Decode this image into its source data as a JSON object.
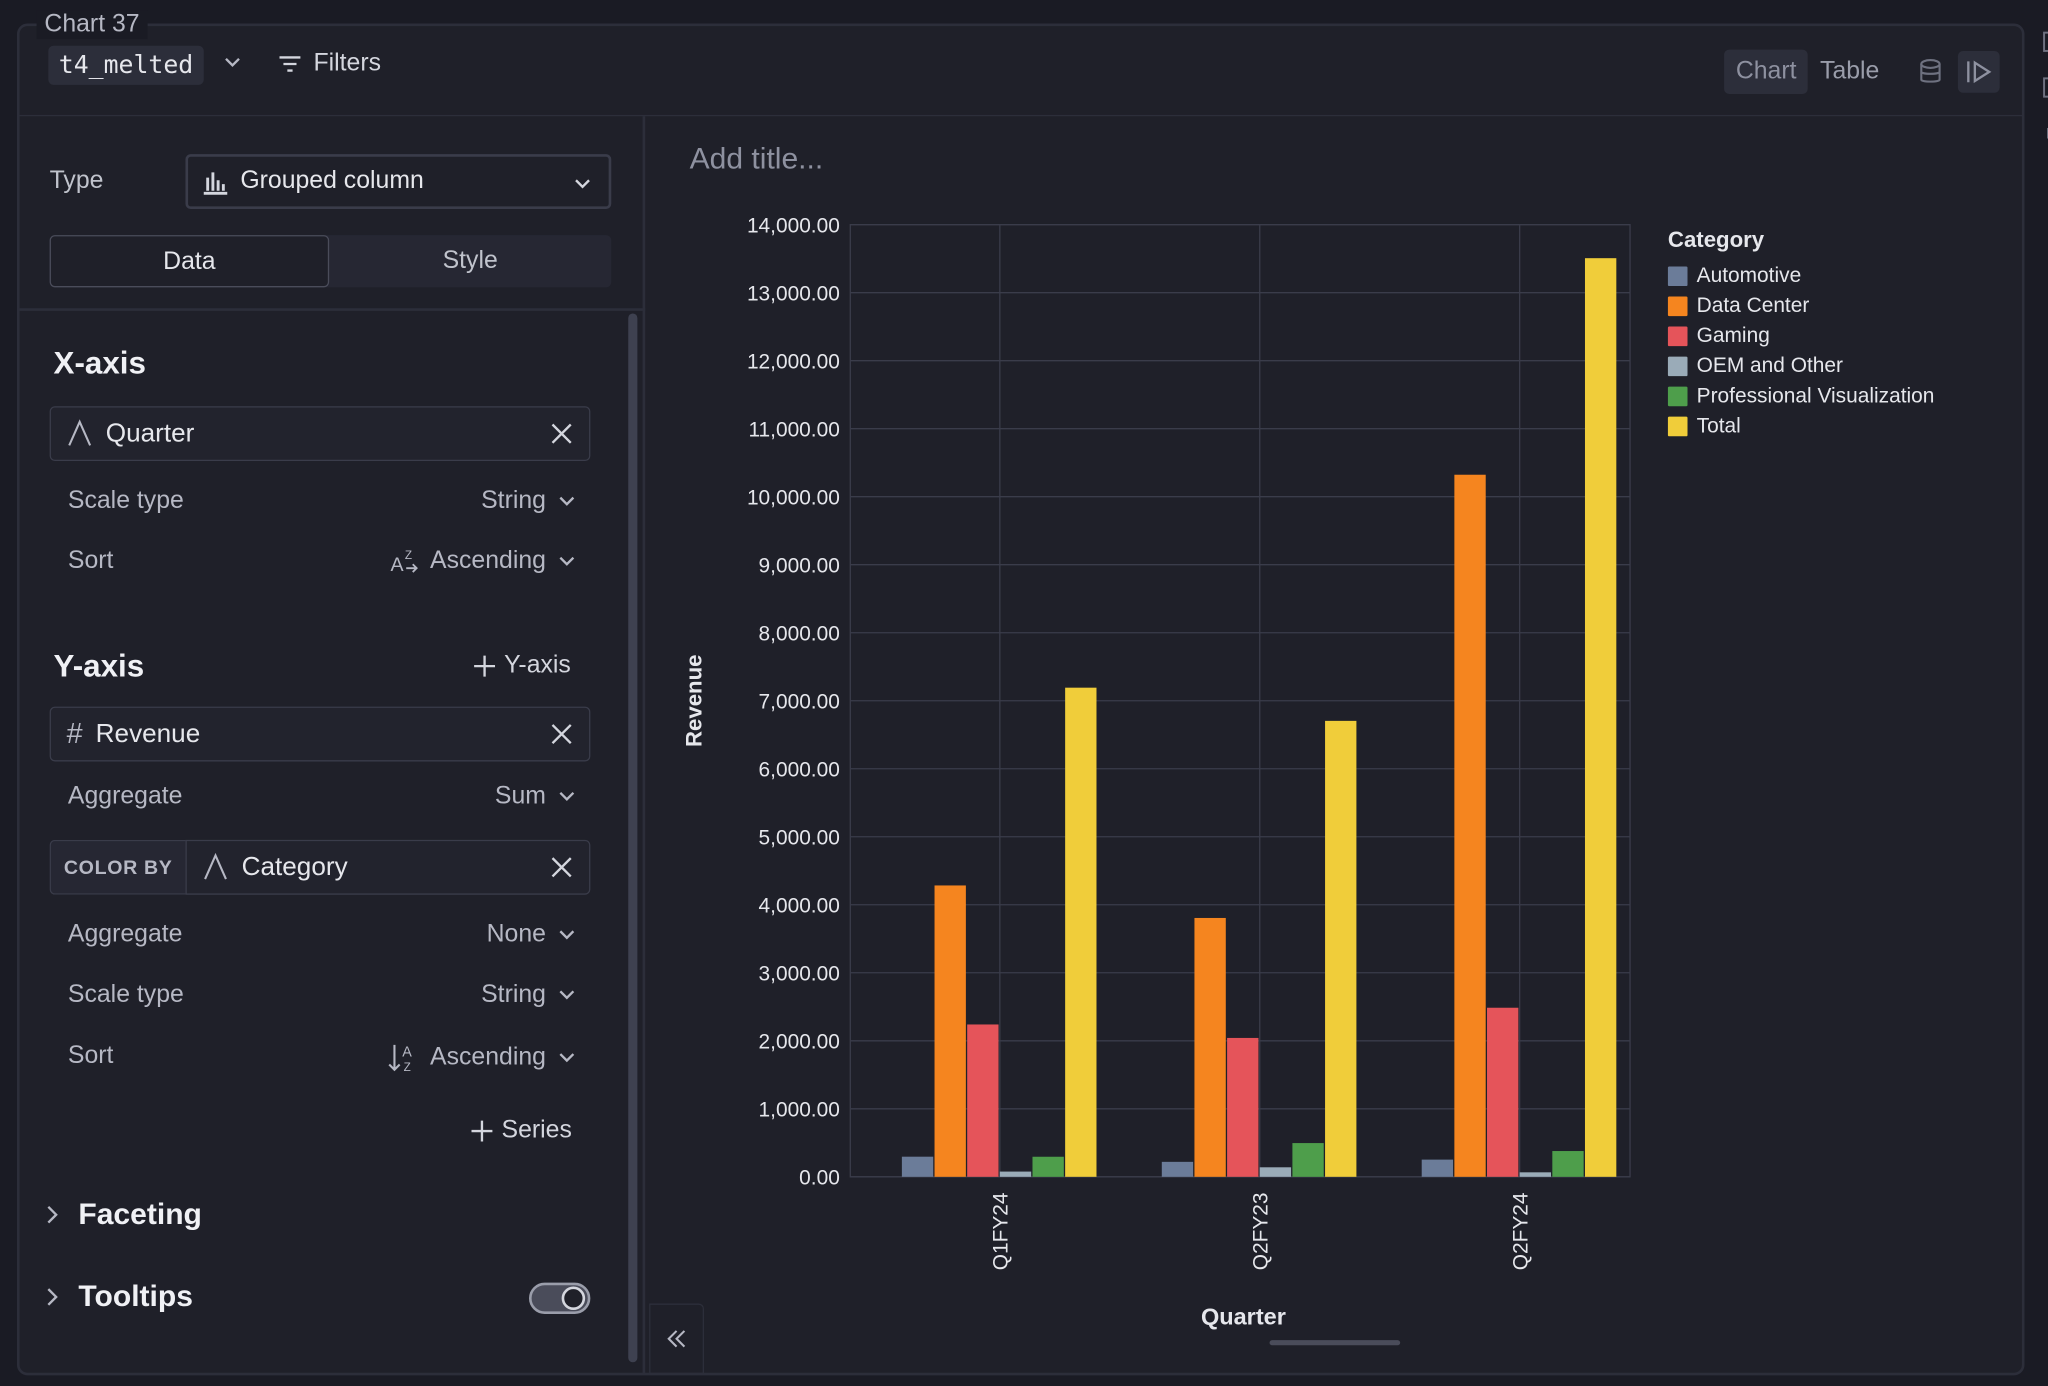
{
  "chart_label": "Chart 37",
  "toolbar": {
    "dataset": "t4_melted",
    "filters_label": "Filters",
    "view_tabs": [
      "Chart",
      "Table"
    ]
  },
  "config": {
    "type_label": "Type",
    "type_value": "Grouped column",
    "tabs": [
      "Data",
      "Style"
    ],
    "x_axis": {
      "title": "X-axis",
      "field": "Quarter",
      "scale_type_label": "Scale type",
      "scale_type_value": "String",
      "sort_label": "Sort",
      "sort_value": "Ascending"
    },
    "y_axis": {
      "title": "Y-axis",
      "add_label": "Y-axis",
      "field": "Revenue",
      "aggregate_label": "Aggregate",
      "aggregate_value": "Sum",
      "color_by_label": "COLOR BY",
      "color_by_field": "Category",
      "color_aggregate_label": "Aggregate",
      "color_aggregate_value": "None",
      "color_scale_type_label": "Scale type",
      "color_scale_type_value": "String",
      "color_sort_label": "Sort",
      "color_sort_value": "Ascending",
      "add_series_label": "Series"
    },
    "faceting_label": "Faceting",
    "tooltips_label": "Tooltips",
    "tooltips_on": true
  },
  "chart_title_placeholder": "Add title...",
  "chart_data": {
    "type": "bar",
    "categories": [
      "Q1FY24",
      "Q2FY23",
      "Q2FY24"
    ],
    "series": [
      {
        "name": "Automotive",
        "color": "#6b7c99",
        "values": [
          296,
          220,
          253
        ]
      },
      {
        "name": "Data Center",
        "color": "#f5851f",
        "values": [
          4284,
          3806,
          10323
        ]
      },
      {
        "name": "Gaming",
        "color": "#e5545a",
        "values": [
          2240,
          2042,
          2486
        ]
      },
      {
        "name": "OEM and Other",
        "color": "#9aabb8",
        "values": [
          77,
          140,
          66
        ]
      },
      {
        "name": "Professional Visualization",
        "color": "#4e9e4b",
        "values": [
          295,
          496,
          379
        ]
      },
      {
        "name": "Total",
        "color": "#f0cd3a",
        "values": [
          7192,
          6704,
          13507
        ]
      }
    ],
    "title": "",
    "legend_title": "Category",
    "xlabel": "Quarter",
    "ylabel": "Revenue",
    "ylim": [
      0,
      14000
    ],
    "yticks": [
      "0.00",
      "1,000.00",
      "2,000.00",
      "3,000.00",
      "4,000.00",
      "5,000.00",
      "6,000.00",
      "7,000.00",
      "8,000.00",
      "9,000.00",
      "10,000.00",
      "11,000.00",
      "12,000.00",
      "13,000.00",
      "14,000.00"
    ],
    "grid": true,
    "legend_position": "right"
  }
}
